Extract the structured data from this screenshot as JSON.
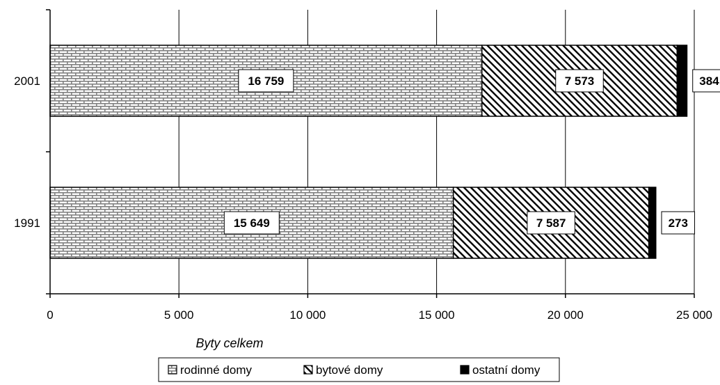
{
  "chart_data": {
    "type": "bar",
    "orientation": "horizontal",
    "stacked": true,
    "categories": [
      "2001",
      "1991"
    ],
    "series": [
      {
        "name": "rodinné domy",
        "values": [
          16759,
          15649
        ],
        "pattern": "brick",
        "color": "#808080"
      },
      {
        "name": "bytové domy",
        "values": [
          7573,
          7587
        ],
        "pattern": "diagonal-hatch",
        "color": "#000000"
      },
      {
        "name": "ostatní domy",
        "values": [
          384,
          273
        ],
        "pattern": "solid",
        "color": "#000000"
      }
    ],
    "data_labels": [
      [
        "16 759",
        "7 573",
        "384"
      ],
      [
        "15 649",
        "7 587",
        "273"
      ]
    ],
    "xlabel": "Byty celkem",
    "ylabel": "",
    "xlim": [
      0,
      25000
    ],
    "x_ticks": [
      0,
      5000,
      10000,
      15000,
      20000,
      25000
    ],
    "x_tick_labels": [
      "0",
      "5 000",
      "10 000",
      "15 000",
      "20 000",
      "25 000"
    ],
    "grid": true,
    "legend_position": "bottom"
  }
}
